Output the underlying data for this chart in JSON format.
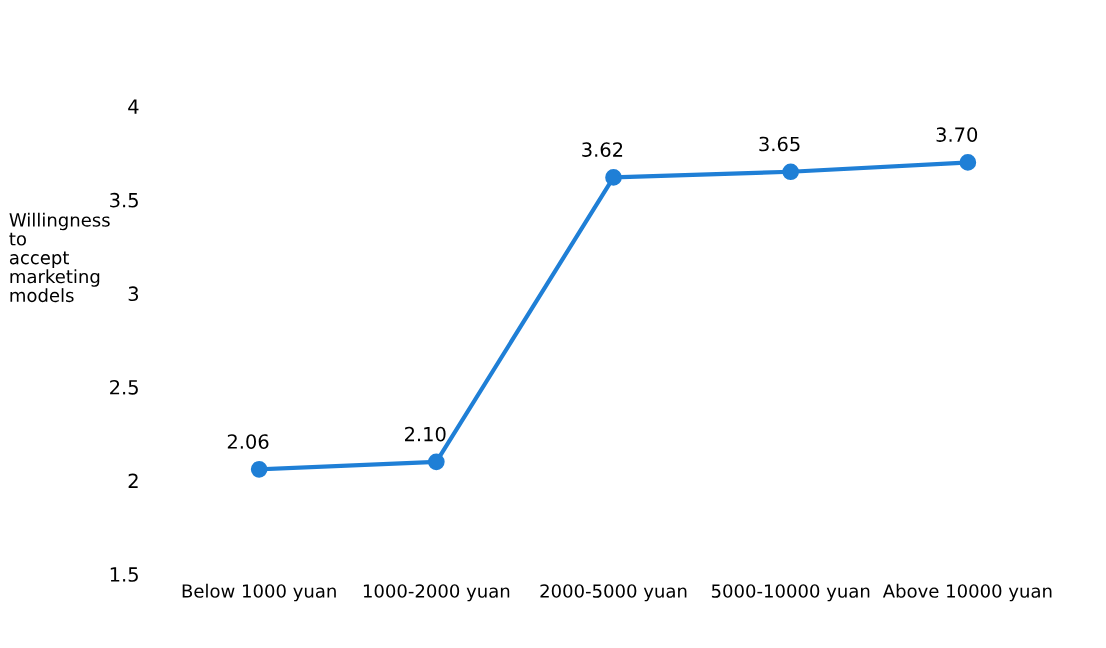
{
  "chart_data": {
    "type": "line",
    "ylabel": "Willingness\nto\naccept\nmarketing\nmodels",
    "categories": [
      "Below 1000 yuan",
      "1000-2000 yuan",
      "2000-5000 yuan",
      "5000-10000 yuan",
      "Above 10000 yuan"
    ],
    "values": [
      2.06,
      2.1,
      3.62,
      3.65,
      3.7
    ],
    "color": "#1f7fd6",
    "marker": "circle",
    "value_labels": [
      "2.06",
      "2.10",
      "3.62",
      "3.65",
      "3.70"
    ],
    "ylim": [
      1.5,
      4
    ],
    "yticks": [
      1.5,
      2,
      2.5,
      3,
      3.5,
      4
    ],
    "grid": false
  }
}
